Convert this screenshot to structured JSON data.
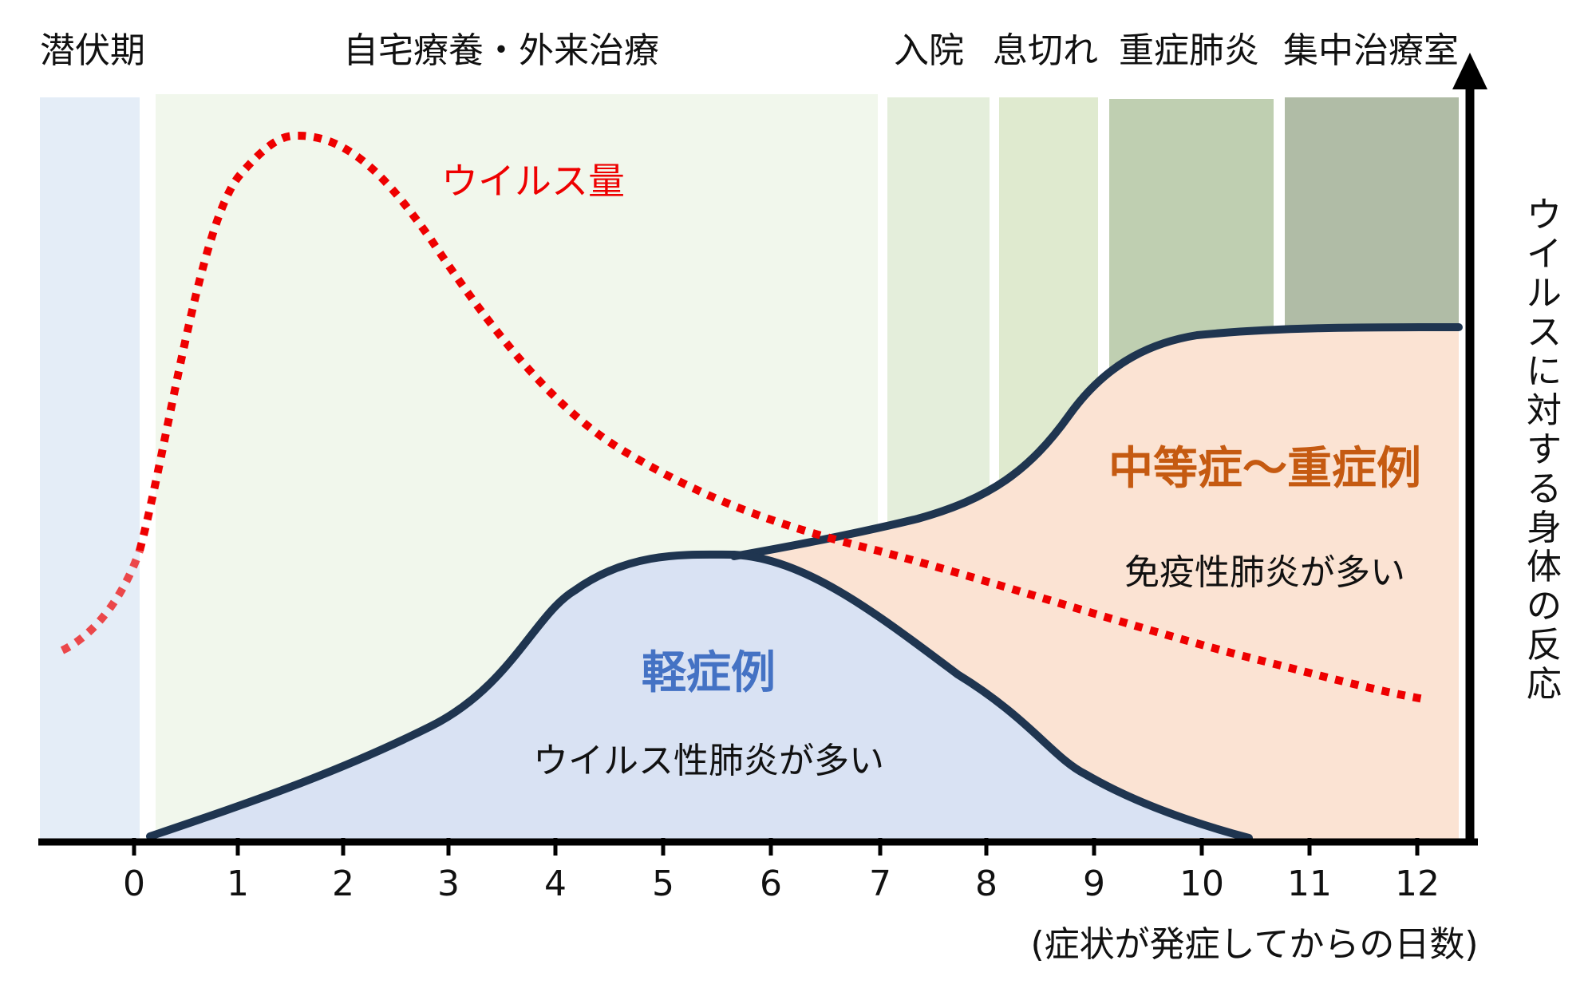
{
  "phases": [
    {
      "id": "latent",
      "label": "潜伏期",
      "color": "#e4edf7"
    },
    {
      "id": "home",
      "label": "自宅療養・外来治療",
      "color": "#f1f7ec"
    },
    {
      "id": "hospital",
      "label": "入院",
      "color": "#e4eedb"
    },
    {
      "id": "breath",
      "label": "息切れ",
      "color": "#dfeacf"
    },
    {
      "id": "pneumonia",
      "label": "重症肺炎",
      "color": "#bfcfb1"
    },
    {
      "id": "icu",
      "label": "集中治療室",
      "color": "#b0bca6"
    }
  ],
  "x_axis": {
    "ticks": [
      "0",
      "1",
      "2",
      "3",
      "4",
      "5",
      "6",
      "7",
      "8",
      "9",
      "10",
      "11",
      "12"
    ],
    "caption": "(症状が発症してからの日数)"
  },
  "y_axis": {
    "caption": [
      "ウ",
      "イ",
      "ル",
      "ス",
      "に",
      "対",
      "す",
      "る",
      "身",
      "体",
      "の",
      "反",
      "応"
    ]
  },
  "curves": {
    "virus": {
      "label": "ウイルス量",
      "color": "#ee0000"
    },
    "mild": {
      "label": "軽症例",
      "sublabel": "ウイルス性肺炎が多い",
      "fill": "#d9e2f3",
      "color": "#4472c4"
    },
    "severe": {
      "label": "中等症〜重症例",
      "sublabel": "免疫性肺炎が多い",
      "fill": "#fbe3d3",
      "color": "#c55a11"
    },
    "line_color": "#1f3550"
  }
}
